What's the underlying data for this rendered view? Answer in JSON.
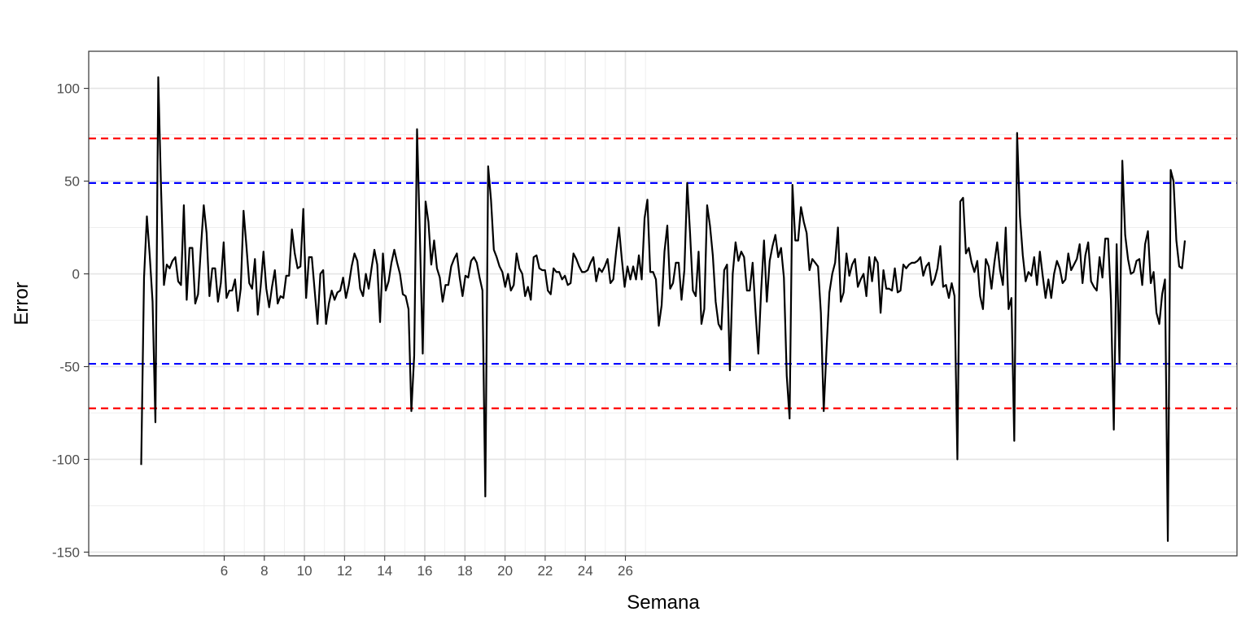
{
  "chart_data": {
    "type": "line",
    "title": "",
    "xlabel": "Semana",
    "ylabel": "Error",
    "x_ticks": [
      "6",
      "8",
      "10",
      "12",
      "14",
      "16",
      "18",
      "20",
      "22",
      "24",
      "26"
    ],
    "y_ticks": [
      "100",
      "50",
      "0",
      "-50",
      "-100",
      "-150"
    ],
    "ylim": [
      -152,
      120
    ],
    "grid": true,
    "legend": "none",
    "reference_lines": [
      {
        "value": 73,
        "color": "#ff0000",
        "style": "dashed"
      },
      {
        "value": 49,
        "color": "#0000ff",
        "style": "dashed"
      },
      {
        "value": -48.5,
        "color": "#0000ff",
        "style": "dashed"
      },
      {
        "value": -72.5,
        "color": "#ff0000",
        "style": "dashed"
      }
    ],
    "series": [
      {
        "color": "#000000",
        "values": [
          -103,
          -2,
          31,
          10,
          -15,
          -80,
          106,
          45,
          -6,
          5,
          3,
          7,
          9,
          -4,
          -6,
          37,
          -14,
          14,
          14,
          -16,
          -11,
          14,
          37,
          22,
          -12,
          3,
          3,
          -15,
          -5,
          17,
          -13,
          -9,
          -9,
          -3,
          -20,
          -8,
          34,
          15,
          -5,
          -8,
          8,
          -22,
          -7,
          12,
          -8,
          -18,
          -7,
          2,
          -16,
          -12,
          -13,
          -1,
          -1,
          24,
          11,
          3,
          4,
          35,
          -13,
          9,
          9,
          -9,
          -27,
          0,
          2,
          -27,
          -16,
          -9,
          -14,
          -10,
          -9,
          -2,
          -13,
          -6,
          4,
          11,
          7,
          -8,
          -12,
          0,
          -8,
          3,
          13,
          5,
          -26,
          11,
          -9,
          -4,
          6,
          13,
          6,
          0,
          -11,
          -12,
          -19,
          -74,
          -44,
          78,
          20,
          -43,
          39,
          28,
          5,
          18,
          3,
          -2,
          -15,
          -6,
          -6,
          4,
          8,
          11,
          -2,
          -12,
          -1,
          -2,
          7,
          9,
          6,
          -2,
          -9,
          -120,
          58,
          40,
          13,
          9,
          4,
          1,
          -7,
          0,
          -9,
          -6,
          11,
          3,
          0,
          -12,
          -7,
          -14,
          9,
          10,
          3,
          2,
          2,
          -9,
          -11,
          3,
          1,
          1,
          -3,
          -1,
          -6,
          -5,
          11,
          8,
          4,
          1,
          1,
          2,
          6,
          9,
          -4,
          3,
          1,
          4,
          8,
          -5,
          -3,
          12,
          25,
          8,
          -7,
          4,
          -3,
          4,
          -3,
          10,
          -3,
          30,
          40,
          1,
          1,
          -3,
          -28,
          -17,
          12,
          26,
          -8,
          -5,
          6,
          6,
          -14,
          2,
          49,
          22,
          -9,
          -12,
          12,
          -27,
          -19,
          37,
          26,
          10,
          -15,
          -27,
          -30,
          2,
          5,
          -52,
          0,
          17,
          7,
          12,
          9,
          -9,
          -9,
          6,
          -20,
          -43,
          -9,
          18,
          -15,
          7,
          15,
          21,
          9,
          14,
          -2,
          -55,
          -78,
          48,
          18,
          18,
          36,
          28,
          22,
          2,
          8,
          6,
          4,
          -21,
          -74,
          -40,
          -10,
          0,
          6,
          25,
          -15,
          -10,
          11,
          -1,
          5,
          8,
          -7,
          -3,
          0,
          -12,
          9,
          -4,
          9,
          6,
          -21,
          2,
          -8,
          -8,
          -9,
          3,
          -10,
          -9,
          5,
          3,
          5,
          6,
          6,
          7,
          9,
          -1,
          4,
          6,
          -6,
          -3,
          3,
          15,
          -7,
          -6,
          -13,
          -5,
          -12,
          -100,
          39,
          41,
          11,
          14,
          6,
          1,
          7,
          -12,
          -19,
          8,
          4,
          -8,
          6,
          17,
          2,
          -6,
          25,
          -19,
          -13,
          -90,
          76,
          31,
          10,
          -4,
          1,
          -1,
          9,
          -6,
          12,
          -1,
          -13,
          -3,
          -13,
          0,
          7,
          3,
          -5,
          -3,
          11,
          2,
          5,
          8,
          16,
          -5,
          10,
          17,
          -4,
          -7,
          -9,
          9,
          -2,
          19,
          19,
          -14,
          -84,
          16,
          -48,
          61,
          21,
          8,
          0,
          1,
          7,
          8,
          -6,
          16,
          23,
          -5,
          1,
          -21,
          -27,
          -11,
          -3,
          -144,
          56,
          50,
          18,
          4,
          3,
          18
        ]
      }
    ]
  }
}
